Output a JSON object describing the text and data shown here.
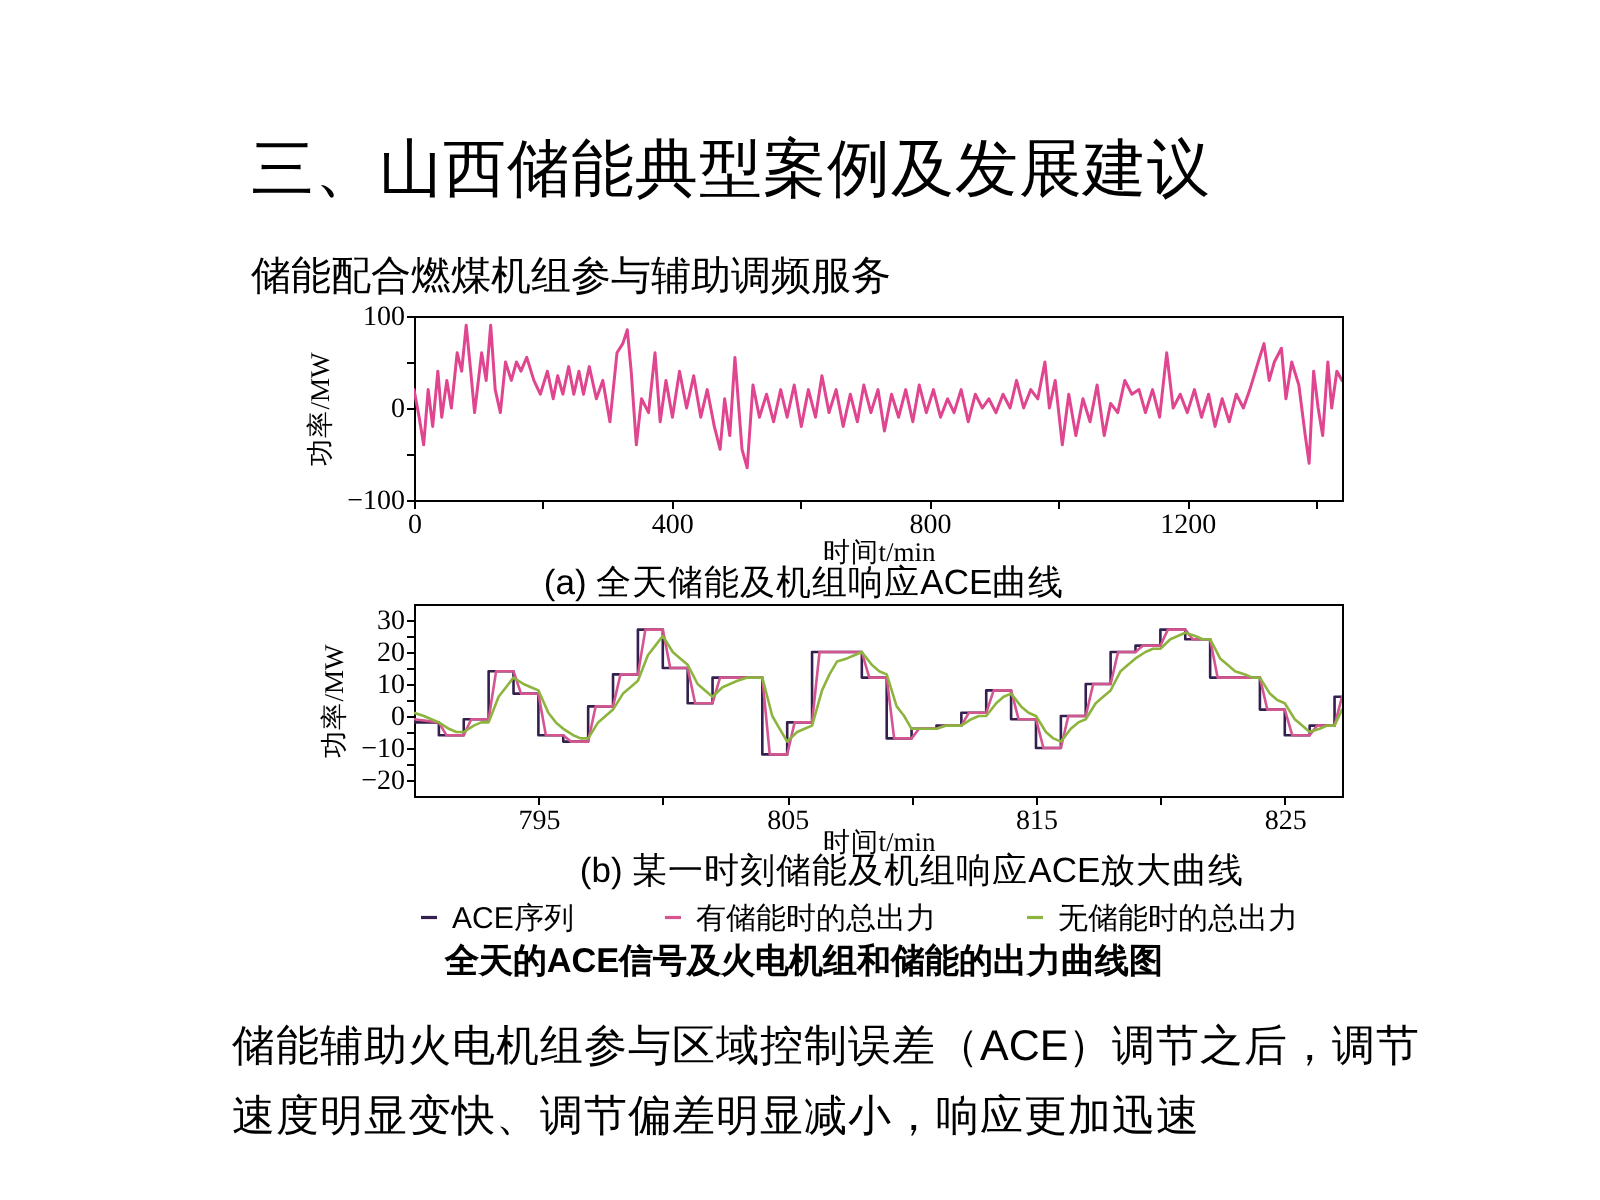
{
  "chart_data": [
    {
      "type": "line",
      "title": "三、山西储能典型案例及发展建议",
      "subtitle": "储能配合燃煤机组参与辅助调频服务",
      "xlabel": "时间t/min",
      "ylabel": "功率/MW",
      "annotations": [
        "(a) 全天储能及机组响应ACE曲线"
      ],
      "grid": false,
      "xlim": [
        0,
        1440
      ],
      "xticks": [
        0,
        {
          "value": 200,
          "label": null
        },
        400,
        {
          "value": 600,
          "label": null
        },
        800,
        {
          "value": 1000,
          "label": null
        },
        1200,
        {
          "value": 1400,
          "label": null
        }
      ],
      "ylim": [
        -100,
        100
      ],
      "yticks": [
        -100,
        {
          "value": -50,
          "label": null
        },
        0,
        {
          "value": 50,
          "label": null
        },
        100
      ],
      "series": [
        {
          "color": "#e0458f",
          "x": [
            0,
            8,
            15,
            22,
            29,
            37,
            43,
            51,
            58,
            67,
            74,
            81,
            88,
            94,
            105,
            112,
            119,
            126,
            134,
            142,
            151,
            159,
            166,
            175,
            186,
            196,
            207,
            216,
            223,
            231,
            240,
            248,
            256,
            263,
            272,
            283,
            293,
            304,
            315,
            324,
            331,
            337,
            345,
            353,
            364,
            374,
            382,
            391,
            401,
            412,
            423,
            434,
            445,
            455,
            466,
            475,
            482,
            490,
            498,
            509,
            517,
            526,
            536,
            547,
            558,
            569,
            579,
            590,
            601,
            612,
            623,
            633,
            644,
            655,
            666,
            677,
            688,
            698,
            709,
            720,
            730,
            741,
            752,
            763,
            774,
            784,
            795,
            806,
            817,
            828,
            838,
            849,
            860,
            871,
            882,
            892,
            903,
            914,
            925,
            935,
            946,
            957,
            968,
            979,
            986,
            995,
            1006,
            1016,
            1027,
            1038,
            1049,
            1060,
            1071,
            1081,
            1092,
            1103,
            1114,
            1125,
            1135,
            1146,
            1157,
            1168,
            1178,
            1189,
            1200,
            1211,
            1222,
            1233,
            1243,
            1254,
            1265,
            1276,
            1287,
            1297,
            1310,
            1319,
            1327,
            1335,
            1346,
            1353,
            1362,
            1373,
            1383,
            1389,
            1396,
            1403,
            1410,
            1418,
            1424,
            1432,
            1440
          ],
          "values": [
            20,
            -10,
            -40,
            20,
            -20,
            40,
            -10,
            30,
            0,
            60,
            40,
            90,
            40,
            -5,
            60,
            30,
            90,
            20,
            -5,
            50,
            30,
            50,
            40,
            55,
            30,
            15,
            40,
            10,
            35,
            15,
            45,
            15,
            40,
            15,
            45,
            10,
            30,
            -15,
            60,
            70,
            85,
            40,
            -40,
            10,
            -5,
            60,
            -15,
            30,
            -10,
            40,
            0,
            35,
            -10,
            20,
            -20,
            -45,
            10,
            -30,
            55,
            -45,
            -65,
            25,
            -10,
            15,
            -15,
            20,
            -10,
            25,
            -20,
            20,
            -10,
            35,
            -5,
            20,
            -20,
            15,
            -15,
            25,
            -5,
            20,
            -25,
            15,
            -10,
            20,
            -15,
            25,
            -5,
            20,
            -10,
            10,
            -5,
            20,
            -15,
            15,
            0,
            10,
            -5,
            15,
            0,
            30,
            0,
            20,
            10,
            50,
            0,
            30,
            -40,
            15,
            -30,
            10,
            -15,
            25,
            -30,
            5,
            -5,
            30,
            15,
            20,
            -5,
            20,
            -10,
            60,
            0,
            15,
            -5,
            20,
            -10,
            15,
            -20,
            10,
            -15,
            15,
            0,
            20,
            50,
            70,
            30,
            50,
            65,
            10,
            50,
            25,
            -30,
            -60,
            40,
            0,
            -30,
            50,
            0,
            40,
            30
          ]
        }
      ]
    },
    {
      "type": "line",
      "xlabel": "时间t/min",
      "ylabel": "功率/MW",
      "annotations": [
        "(b) 某一时刻储能及机组响应ACE放大曲线",
        "全天的ACE信号及火电机组和储能的出力曲线图",
        "储能辅助火电机组参与区域控制误差（ACE）调节之后，调节速度明显变快、调节偏差明显减小，响应更加迅速"
      ],
      "grid": false,
      "legend": "bottom",
      "xlim": [
        790,
        827.3
      ],
      "xticks": [
        795,
        {
          "value": 800,
          "label": null
        },
        805,
        {
          "value": 810,
          "label": null
        },
        815,
        {
          "value": 820,
          "label": null
        },
        825
      ],
      "ylim": [
        -25,
        35
      ],
      "yticks": [
        -20,
        {
          "value": -15,
          "label": null
        },
        -10,
        {
          "value": -5,
          "label": null
        },
        0,
        {
          "value": 5,
          "label": null
        },
        10,
        {
          "value": 15,
          "label": null
        },
        20,
        {
          "value": 25,
          "label": null
        },
        30
      ],
      "series": [
        {
          "name": "ACE序列",
          "type": "step",
          "color": "#33204f",
          "x": [
            790,
            791,
            792,
            793,
            794,
            795,
            796,
            797,
            798,
            799,
            800,
            801,
            802,
            803,
            804,
            805,
            806,
            807,
            808,
            809,
            810,
            811,
            812,
            813,
            814,
            815,
            816,
            817,
            818,
            819,
            820,
            821,
            822,
            823,
            824,
            825,
            826,
            827,
            827.3
          ],
          "values": [
            -2,
            -6,
            -1,
            14,
            7,
            -6,
            -8,
            3,
            13,
            27,
            15,
            4,
            12,
            12,
            -12,
            -2,
            20,
            20,
            12,
            -7,
            -4,
            -3,
            1,
            8,
            -1,
            -10,
            0,
            10,
            20,
            22,
            27,
            24,
            12,
            12,
            2,
            -6,
            -3,
            6,
            6
          ]
        },
        {
          "name": "有储能时的总出力",
          "type": "line",
          "color": "#d4558f",
          "x": [
            790,
            791,
            791.3,
            792,
            792.3,
            793,
            793.3,
            794,
            794.3,
            795,
            795.3,
            796,
            796.3,
            797,
            797.3,
            798,
            798.3,
            799,
            799.3,
            800,
            800.3,
            801,
            801.3,
            802,
            802.3,
            803,
            803.3,
            804,
            804.3,
            805,
            805.3,
            806,
            806.3,
            807,
            807.3,
            808,
            808.3,
            809,
            809.3,
            810,
            810.3,
            811,
            811.3,
            812,
            812.3,
            813,
            813.3,
            814,
            814.3,
            815,
            815.3,
            816,
            816.3,
            817,
            817.3,
            818,
            818.3,
            819,
            819.3,
            820,
            820.3,
            821,
            821.3,
            822,
            822.3,
            823,
            823.3,
            824,
            824.3,
            825,
            825.3,
            826,
            826.3,
            827,
            827.3
          ],
          "values": [
            -1,
            -2,
            -6,
            -6,
            -1,
            -1,
            14,
            14,
            7,
            7,
            -6,
            -6,
            -8,
            -8,
            3,
            3,
            13,
            13,
            27,
            27,
            15,
            15,
            4,
            4,
            12,
            12,
            12,
            12,
            -12,
            -12,
            -2,
            -2,
            20,
            20,
            20,
            20,
            12,
            12,
            -7,
            -7,
            -4,
            -4,
            -3,
            -3,
            1,
            1,
            8,
            8,
            -1,
            -1,
            -10,
            -10,
            0,
            0,
            10,
            10,
            20,
            20,
            22,
            22,
            27,
            27,
            24,
            24,
            12,
            12,
            12,
            12,
            2,
            2,
            -6,
            -6,
            -3,
            -3,
            6
          ]
        },
        {
          "name": "无储能时的总出力",
          "type": "line",
          "color": "#8db43e",
          "x": [
            790,
            790.4,
            790.7,
            791,
            791.4,
            791.7,
            792,
            792.4,
            792.7,
            793,
            793.4,
            793.7,
            794,
            794.4,
            794.7,
            795,
            795.4,
            795.7,
            796,
            796.4,
            796.7,
            797,
            797.4,
            797.7,
            798,
            798.4,
            798.7,
            799,
            799.4,
            799.7,
            800,
            800.4,
            800.7,
            801,
            801.4,
            801.7,
            802,
            802.4,
            802.7,
            803,
            803.4,
            803.7,
            804,
            804.4,
            804.7,
            805,
            805.4,
            805.7,
            806,
            806.4,
            806.7,
            807,
            807.4,
            807.7,
            808,
            808.4,
            808.7,
            809,
            809.4,
            809.7,
            810,
            810.4,
            810.7,
            811,
            811.4,
            811.7,
            812,
            812.4,
            812.7,
            813,
            813.4,
            813.7,
            814,
            814.4,
            814.7,
            815,
            815.4,
            815.7,
            816,
            816.4,
            816.7,
            817,
            817.4,
            817.7,
            818,
            818.4,
            818.7,
            819,
            819.4,
            819.7,
            820,
            820.4,
            820.7,
            821,
            821.4,
            821.7,
            822,
            822.4,
            822.7,
            823,
            823.4,
            823.7,
            824,
            824.4,
            824.7,
            825,
            825.4,
            825.7,
            826,
            826.4,
            826.7,
            827,
            827.3
          ],
          "values": [
            1,
            0,
            -1,
            -2,
            -4,
            -5,
            -5,
            -3,
            -2,
            -2,
            6,
            9,
            12,
            10,
            9,
            8,
            1,
            -2,
            -4,
            -6,
            -7,
            -7,
            -2,
            0,
            2,
            7,
            9,
            11,
            19,
            22,
            25,
            20,
            18,
            16,
            10,
            8,
            6,
            9,
            10,
            11,
            12,
            12,
            12,
            0,
            -4,
            -8,
            -5,
            -4,
            -3,
            8,
            13,
            17,
            18,
            19,
            20,
            16,
            14,
            13,
            3,
            0,
            -4,
            -4,
            -4,
            -4,
            -3,
            -3,
            -3,
            -1,
            0,
            0,
            4,
            6,
            7,
            3,
            1,
            0,
            -5,
            -7,
            -8,
            -4,
            -2,
            -1,
            4,
            6,
            8,
            14,
            16,
            18,
            20,
            21,
            21,
            24,
            25,
            26,
            25,
            24,
            24,
            18,
            16,
            14,
            13,
            12,
            12,
            7,
            5,
            4,
            -1,
            -3,
            -5,
            -4,
            -3,
            -3,
            2
          ]
        }
      ]
    }
  ]
}
